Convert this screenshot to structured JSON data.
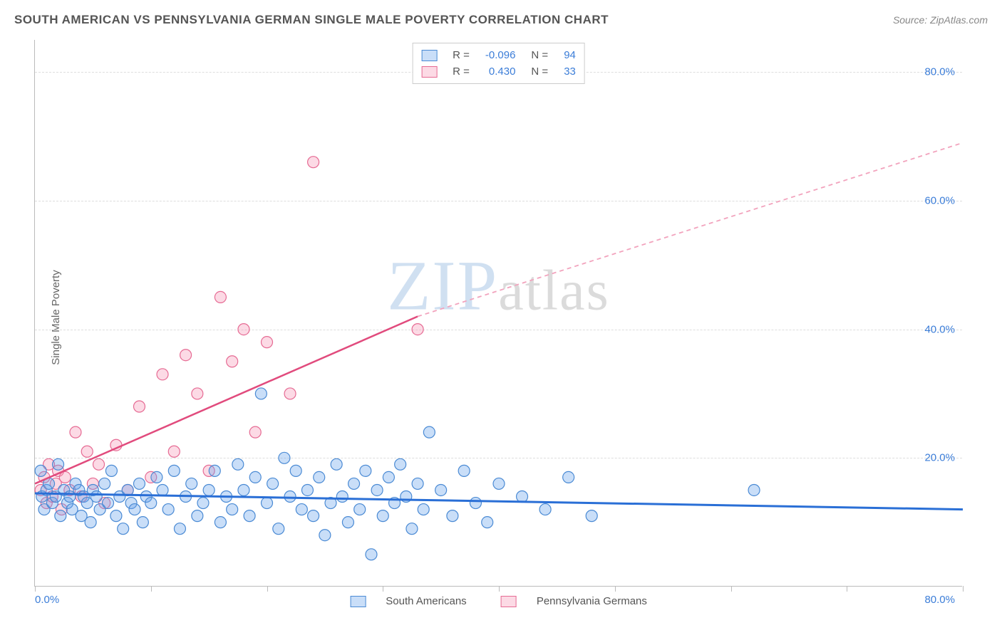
{
  "title": "SOUTH AMERICAN VS PENNSYLVANIA GERMAN SINGLE MALE POVERTY CORRELATION CHART",
  "source": "Source: ZipAtlas.com",
  "ylabel": "Single Male Poverty",
  "watermark": "ZIPatlas",
  "chart": {
    "type": "scatter",
    "xlim": [
      0,
      80
    ],
    "ylim": [
      0,
      85
    ],
    "x_axis_label_left": "0.0%",
    "x_axis_label_right": "80.0%",
    "y_ticks": [
      20,
      40,
      60,
      80
    ],
    "y_tick_labels": [
      "20.0%",
      "40.0%",
      "60.0%",
      "80.0%"
    ],
    "x_tick_positions": [
      0,
      10,
      20,
      30,
      40,
      50,
      60,
      70,
      80
    ],
    "grid_color": "#dddddd",
    "background_color": "#ffffff",
    "axis_color": "#bbbbbb"
  },
  "series": {
    "south_americans": {
      "label": "South Americans",
      "fill": "rgba(100,160,235,0.35)",
      "stroke": "#4a8ad4",
      "marker_radius": 8,
      "R": "-0.096",
      "N": "94",
      "trend": {
        "x1": 0,
        "y1": 14.5,
        "x2": 80,
        "y2": 12.0,
        "color": "#2a6fd6",
        "width": 3,
        "dash": "none"
      },
      "points": [
        [
          0.5,
          18
        ],
        [
          0.6,
          14
        ],
        [
          0.8,
          12
        ],
        [
          1,
          15
        ],
        [
          1.2,
          16
        ],
        [
          1.5,
          13
        ],
        [
          1.8,
          14
        ],
        [
          2,
          19
        ],
        [
          2.2,
          11
        ],
        [
          2.5,
          15
        ],
        [
          2.8,
          13
        ],
        [
          3,
          14
        ],
        [
          3.2,
          12
        ],
        [
          3.5,
          16
        ],
        [
          3.8,
          15
        ],
        [
          4,
          11
        ],
        [
          4.2,
          14
        ],
        [
          4.5,
          13
        ],
        [
          4.8,
          10
        ],
        [
          5,
          15
        ],
        [
          5.3,
          14
        ],
        [
          5.6,
          12
        ],
        [
          6,
          16
        ],
        [
          6.3,
          13
        ],
        [
          6.6,
          18
        ],
        [
          7,
          11
        ],
        [
          7.3,
          14
        ],
        [
          7.6,
          9
        ],
        [
          8,
          15
        ],
        [
          8.3,
          13
        ],
        [
          8.6,
          12
        ],
        [
          9,
          16
        ],
        [
          9.3,
          10
        ],
        [
          9.6,
          14
        ],
        [
          10,
          13
        ],
        [
          10.5,
          17
        ],
        [
          11,
          15
        ],
        [
          11.5,
          12
        ],
        [
          12,
          18
        ],
        [
          12.5,
          9
        ],
        [
          13,
          14
        ],
        [
          13.5,
          16
        ],
        [
          14,
          11
        ],
        [
          14.5,
          13
        ],
        [
          15,
          15
        ],
        [
          15.5,
          18
        ],
        [
          16,
          10
        ],
        [
          16.5,
          14
        ],
        [
          17,
          12
        ],
        [
          17.5,
          19
        ],
        [
          18,
          15
        ],
        [
          18.5,
          11
        ],
        [
          19,
          17
        ],
        [
          19.5,
          30
        ],
        [
          20,
          13
        ],
        [
          20.5,
          16
        ],
        [
          21,
          9
        ],
        [
          21.5,
          20
        ],
        [
          22,
          14
        ],
        [
          22.5,
          18
        ],
        [
          23,
          12
        ],
        [
          23.5,
          15
        ],
        [
          24,
          11
        ],
        [
          24.5,
          17
        ],
        [
          25,
          8
        ],
        [
          25.5,
          13
        ],
        [
          26,
          19
        ],
        [
          26.5,
          14
        ],
        [
          27,
          10
        ],
        [
          27.5,
          16
        ],
        [
          28,
          12
        ],
        [
          28.5,
          18
        ],
        [
          29,
          5
        ],
        [
          29.5,
          15
        ],
        [
          30,
          11
        ],
        [
          30.5,
          17
        ],
        [
          31,
          13
        ],
        [
          31.5,
          19
        ],
        [
          32,
          14
        ],
        [
          32.5,
          9
        ],
        [
          33,
          16
        ],
        [
          33.5,
          12
        ],
        [
          34,
          24
        ],
        [
          35,
          15
        ],
        [
          36,
          11
        ],
        [
          37,
          18
        ],
        [
          38,
          13
        ],
        [
          39,
          10
        ],
        [
          40,
          16
        ],
        [
          42,
          14
        ],
        [
          44,
          12
        ],
        [
          46,
          17
        ],
        [
          48,
          11
        ],
        [
          62,
          15
        ]
      ]
    },
    "pennsylvania_germans": {
      "label": "Pennsylvania Germans",
      "fill": "rgba(245,150,180,0.35)",
      "stroke": "#e66a93",
      "marker_radius": 8,
      "R": "0.430",
      "N": "33",
      "trend_solid": {
        "x1": 0,
        "y1": 16,
        "x2": 33,
        "y2": 42,
        "color": "#e14b7d",
        "width": 2.5
      },
      "trend_dashed": {
        "x1": 33,
        "y1": 42,
        "x2": 80,
        "y2": 69,
        "color": "#f2a3bd",
        "width": 1.8,
        "dash": "6,5"
      },
      "points": [
        [
          0.5,
          15
        ],
        [
          0.8,
          17
        ],
        [
          1,
          13
        ],
        [
          1.2,
          19
        ],
        [
          1.5,
          14
        ],
        [
          1.8,
          16
        ],
        [
          2,
          18
        ],
        [
          2.3,
          12
        ],
        [
          2.6,
          17
        ],
        [
          3,
          15
        ],
        [
          3.5,
          24
        ],
        [
          4,
          14
        ],
        [
          4.5,
          21
        ],
        [
          5,
          16
        ],
        [
          5.5,
          19
        ],
        [
          6,
          13
        ],
        [
          7,
          22
        ],
        [
          8,
          15
        ],
        [
          9,
          28
        ],
        [
          10,
          17
        ],
        [
          11,
          33
        ],
        [
          12,
          21
        ],
        [
          13,
          36
        ],
        [
          14,
          30
        ],
        [
          15,
          18
        ],
        [
          16,
          45
        ],
        [
          17,
          35
        ],
        [
          18,
          40
        ],
        [
          19,
          24
        ],
        [
          20,
          38
        ],
        [
          22,
          30
        ],
        [
          24,
          66
        ],
        [
          33,
          40
        ]
      ]
    }
  },
  "legend_top": {
    "R_label": "R =",
    "N_label": "N =",
    "value_color": "#3b7dd8"
  },
  "legend_bottom": {
    "items": [
      "south_americans",
      "pennsylvania_germans"
    ]
  }
}
